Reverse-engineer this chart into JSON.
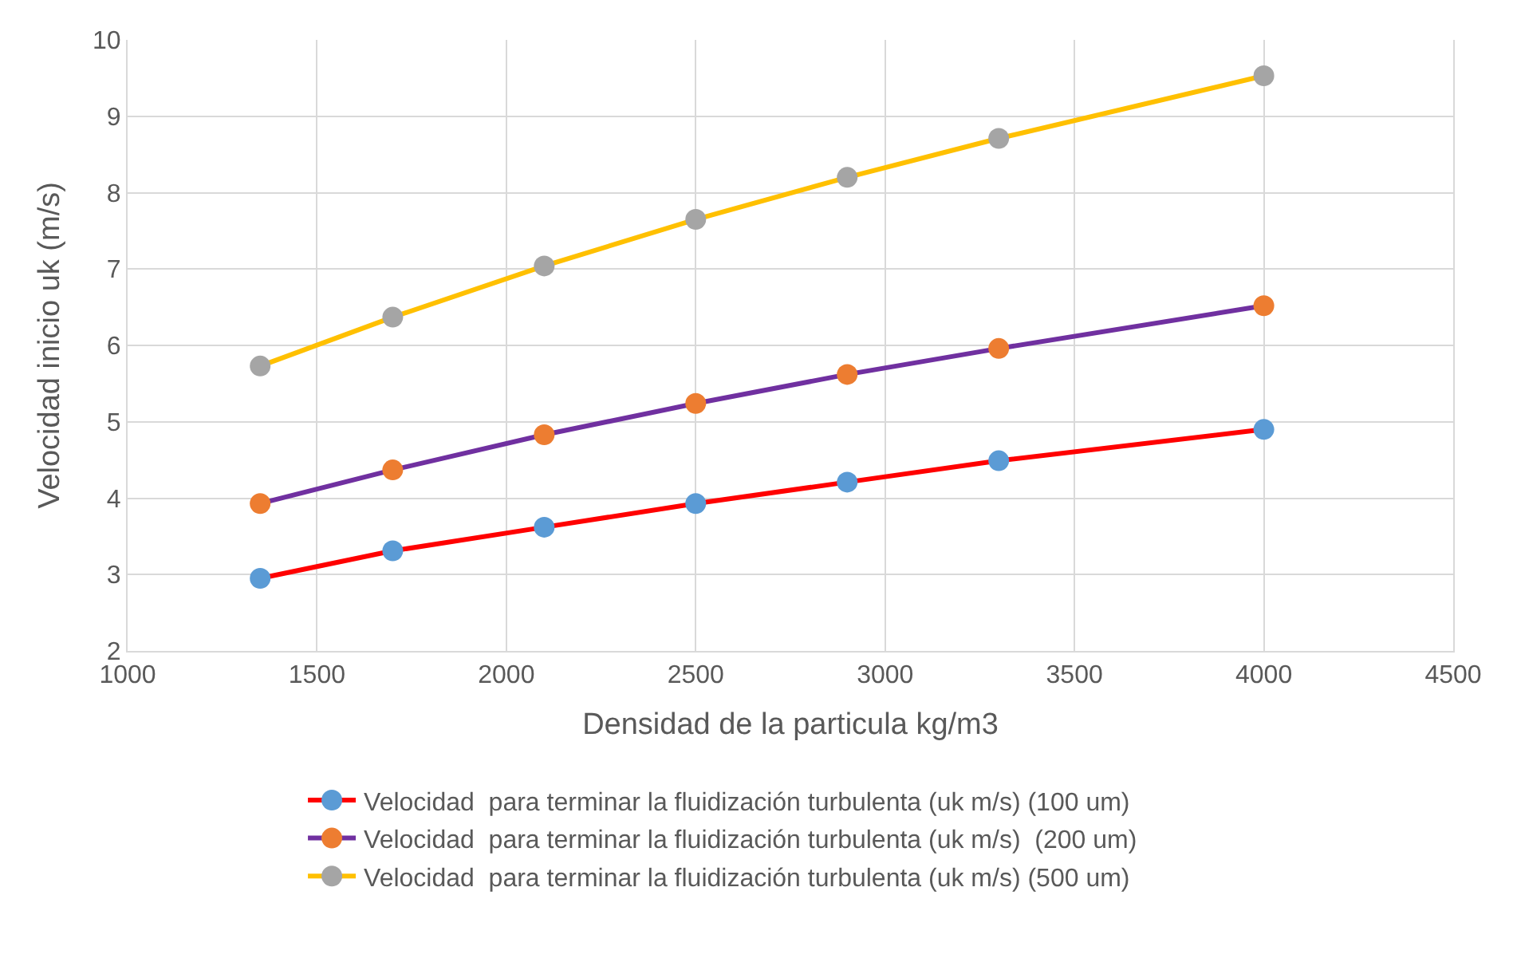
{
  "chart_data": {
    "type": "line",
    "xlabel": "Densidad de la particula kg/m3",
    "ylabel": "Velocidad inicio uk (m/s)",
    "x": [
      1350,
      1700,
      2100,
      2500,
      2900,
      3300,
      4000
    ],
    "series": [
      {
        "name": "Velocidad  para terminar la fluidización turbulenta (uk m/s) (100 um)",
        "color": "#ff0000",
        "colors": [
          "#5b9bd5",
          "#5b9bd5",
          "#5b9bd5",
          "#5b9bd5",
          "#5b9bd5",
          "#5b9bd5",
          "#5b9bd5"
        ],
        "values": [
          2.95,
          3.31,
          3.62,
          3.93,
          4.21,
          4.49,
          4.9
        ]
      },
      {
        "name": "Velocidad  para terminar la fluidización turbulenta (uk m/s)  (200 um)",
        "color": "#7030a0",
        "colors": [
          "#ed7d31",
          "#ed7d31",
          "#ed7d31",
          "#ed7d31",
          "#ed7d31",
          "#ed7d31",
          "#ed7d31"
        ],
        "values": [
          3.93,
          4.37,
          4.83,
          5.24,
          5.62,
          5.96,
          6.52
        ]
      },
      {
        "name": "Velocidad  para terminar la fluidización turbulenta (uk m/s) (500 um)",
        "color": "#ffc000",
        "colors": [
          "#a5a5a5",
          "#a5a5a5",
          "#a5a5a5",
          "#a5a5a5",
          "#a5a5a5",
          "#a5a5a5",
          "#a5a5a5"
        ],
        "values": [
          5.73,
          6.37,
          7.04,
          7.65,
          8.2,
          8.71,
          9.53
        ]
      }
    ],
    "xlim": [
      1000,
      4500
    ],
    "xticks": [
      1000,
      1500,
      2000,
      2500,
      3000,
      3500,
      4000,
      4500
    ],
    "ylim": [
      2,
      10
    ],
    "yticks": [
      2,
      3,
      4,
      5,
      6,
      7,
      8,
      9,
      10
    ],
    "grid": true,
    "legend": "bottom",
    "marker": "circle",
    "line_style": "solid"
  }
}
